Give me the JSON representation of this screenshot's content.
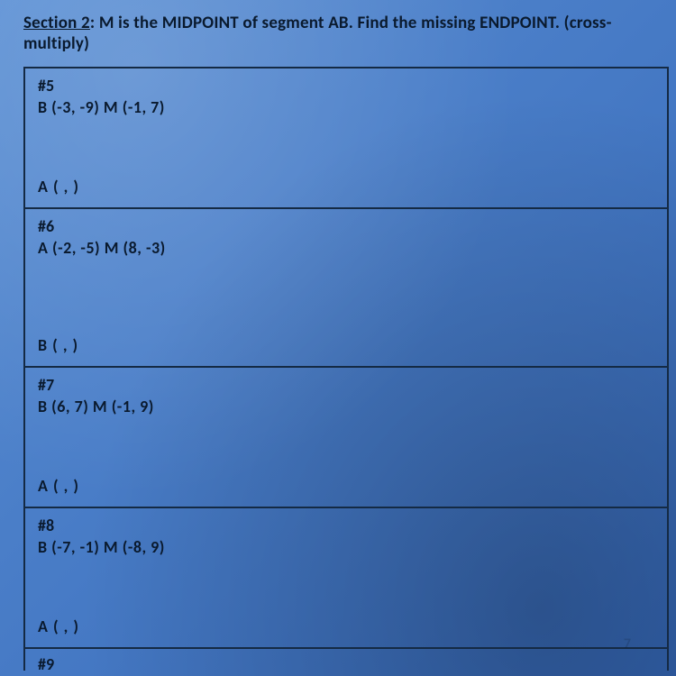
{
  "header": {
    "section_label": "Section 2",
    "instruction_pre": ": M is the ",
    "midpoint": "MIDPOINT",
    "instruction_mid": " of segment AB. Find the missing ",
    "endpoint": "ENDPOINT.",
    "method": " (cross-multiply)"
  },
  "problems": {
    "p5": {
      "num": "#5",
      "given": "B (-3, -9)   M (-1, 7)",
      "answer": "A (        ,          )"
    },
    "p6": {
      "num": "#6",
      "given": "A (-2, -5)   M (8, -3)",
      "answer": "B (        ,          )"
    },
    "p7": {
      "num": "#7",
      "given": "B (6, 7)     M (-1, 9)",
      "answer": "A (        ,          )"
    },
    "p8": {
      "num": "#8",
      "given": "B (-7, -1)   M (-8, 9)",
      "answer": "A (        ,          )"
    },
    "p9": {
      "num": "#9"
    }
  },
  "style": {
    "border_color": "#142a44",
    "text_color": "#0a1a2e",
    "bg_tint": "#4a7ec8",
    "heading_fontsize": 19,
    "body_fontsize": 18
  }
}
